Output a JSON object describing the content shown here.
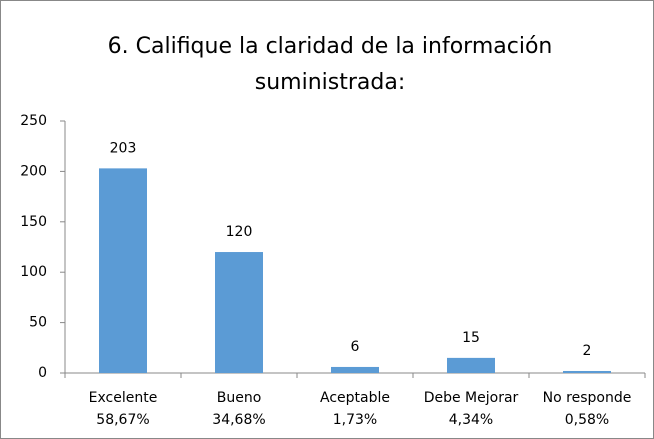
{
  "chart_data": {
    "type": "bar",
    "title": [
      "6. Califique la claridad de la información",
      "suministrada:"
    ],
    "categories": [
      "Excelente",
      "Bueno",
      "Aceptable",
      "Debe Mejorar",
      "No responde"
    ],
    "category_percentages": [
      "58,67%",
      "34,68%",
      "1,73%",
      "4,34%",
      "0,58%"
    ],
    "values": [
      203,
      120,
      6,
      15,
      2
    ],
    "color": "#5b9bd5",
    "ylim": [
      0,
      250
    ],
    "yticks": [
      0,
      50,
      100,
      150,
      200,
      250
    ],
    "grid": false,
    "data_labels": true
  }
}
